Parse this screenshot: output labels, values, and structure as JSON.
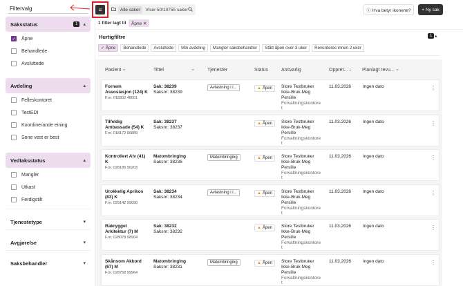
{
  "sidebar": {
    "title": "Filtervalg",
    "groups": [
      {
        "title": "Saksstatus",
        "badge": "1",
        "chevron": "▴",
        "options": [
          {
            "label": "Åpne",
            "checked": true
          },
          {
            "label": "Behandlede",
            "checked": false
          },
          {
            "label": "Avsluttede",
            "checked": false
          }
        ]
      },
      {
        "title": "Avdeling",
        "chevron": "▴",
        "options": [
          {
            "label": "Felleskontoret",
            "checked": false
          },
          {
            "label": "TestEDI",
            "checked": false
          },
          {
            "label": "Koordinerande eining",
            "checked": false
          },
          {
            "label": "Sone vest er best",
            "checked": false
          }
        ]
      },
      {
        "title": "Vedtaksstatus",
        "chevron": "▴",
        "options": [
          {
            "label": "Mangler",
            "checked": false
          },
          {
            "label": "Utkast",
            "checked": false
          },
          {
            "label": "Ferdigstilt",
            "checked": false
          }
        ]
      },
      {
        "title": "Tjenestetype",
        "chevron": "▾"
      },
      {
        "title": "Avgjørelse",
        "chevron": "▾"
      },
      {
        "title": "Saksbehandler",
        "chevron": "▾"
      }
    ]
  },
  "topbar": {
    "menu_icon": "≡",
    "search_scope": "Alle saker",
    "search_count": "Viser 50/10755 saker",
    "help_label": "ⓘ Hva betyr ikonene?",
    "new_label": "+ Ny sak"
  },
  "applied": {
    "count_label": "1 filter lagt til",
    "chip_label": "Åpne ✕"
  },
  "quick": {
    "title": "Hurtigfiltre",
    "badge": "1",
    "chevron": "▴",
    "chips": [
      {
        "label": "✓ Åpne",
        "active": true
      },
      {
        "label": "Behandlede",
        "active": false
      },
      {
        "label": "Avsluttede",
        "active": false
      },
      {
        "label": "Min avdeling",
        "active": false
      },
      {
        "label": "Mangler saksbehandler",
        "active": false
      },
      {
        "label": "Stått åpen over 3 uker",
        "active": false
      },
      {
        "label": "Revurderes innen 2 uker",
        "active": false
      }
    ]
  },
  "table": {
    "headers": {
      "pasient": "Pasient",
      "tittel": "Tittel",
      "tjenester": "Tjenester",
      "status": "Status",
      "ansvarlig": "Ansvarlig",
      "opprettet": "Oppret... ↓",
      "planlagt": "Planlagt revu..."
    },
    "rows": [
      {
        "name_l1": "Fornem",
        "name_l2": "Assosiasjon (124) K",
        "fnr": "F.nr. 018302 48001",
        "title": "Sak: 38239",
        "saksnr": "Saksnr: 38239",
        "service": "Avlastning i i...",
        "status": "Åpen",
        "ans1": "Store Testbruker",
        "ans2": "Ikke-Bruk-Meg",
        "ans3": "Persille",
        "ans4": "Forvaltningskontore",
        "ans5": "t",
        "created": "11.03.2026",
        "planned": "Ingen dato"
      },
      {
        "name_l1": "Tilfeldig",
        "name_l2": "Ambassade (54) K",
        "fnr": "F.nr. 018172 96889",
        "title": "Sak: 38237",
        "saksnr": "Saksnr: 38237",
        "service": "",
        "status": "Åpen",
        "ans1": "Store Testbruker",
        "ans2": "Ikke-Bruk-Meg",
        "ans3": "Persille",
        "ans4": "Forvaltningskontore",
        "ans5": "t",
        "created": "11.03.2026",
        "planned": "Ingen dato"
      },
      {
        "name_l1": "Kontrollert Alv (41)",
        "name_l2": "K",
        "fnr": "F.nr. 028185 96203",
        "title": "Matombringing",
        "saksnr": "Saksnr: 38236",
        "service": "Matombringing",
        "status": "Åpen",
        "ans1": "Store Testbruker",
        "ans2": "Ikke-Bruk-Meg",
        "ans3": "Persille",
        "ans4": "Forvaltningskontore",
        "ans5": "t",
        "created": "11.03.2026",
        "planned": "Ingen dato"
      },
      {
        "name_l1": "Urokkelig Aprikos",
        "name_l2": "(83) K",
        "fnr": "F.nr. 029142 99090",
        "title": "Sak: 38234",
        "saksnr": "Saksnr: 38234",
        "service": "Avlastning i i...",
        "status": "Åpen",
        "ans1": "Store Testbruker",
        "ans2": "Ikke-Bruk-Meg",
        "ans3": "Persille",
        "ans4": "Forvaltningskontore",
        "ans5": "t",
        "created": "11.03.2026",
        "planned": "Ingen dato"
      },
      {
        "name_l1": "Rakrygget",
        "name_l2": "Arkitektur (7) M",
        "fnr": "F.nr. 028078 98904",
        "title": "Sak: 38232",
        "saksnr": "Saksnr: 38232",
        "service": "",
        "status": "Åpen",
        "ans1": "Store Testbruker",
        "ans2": "Ikke-Bruk-Meg",
        "ans3": "Persille",
        "ans4": "Forvaltningskontore",
        "ans5": "t",
        "created": "11.03.2026",
        "planned": "Ingen dato"
      },
      {
        "name_l1": "Skånsom Akkord",
        "name_l2": "(67) M",
        "fnr": "F.nr. 028758 99964",
        "title": "Matombringing",
        "saksnr": "Saksnr: 38231",
        "service": "Matombringing",
        "status": "Åpen",
        "ans1": "Store Testbruker",
        "ans2": "Ikke-Bruk-Meg",
        "ans3": "Persille",
        "ans4": "Forvaltningskontore",
        "ans5": "t",
        "created": "11.03.2026",
        "planned": "Ingen dato"
      }
    ]
  },
  "colors": {
    "accent": "#6d3a87",
    "group_bg": "#ecdcee",
    "status_dot": "#e89a00",
    "highlight": "#e02020"
  }
}
